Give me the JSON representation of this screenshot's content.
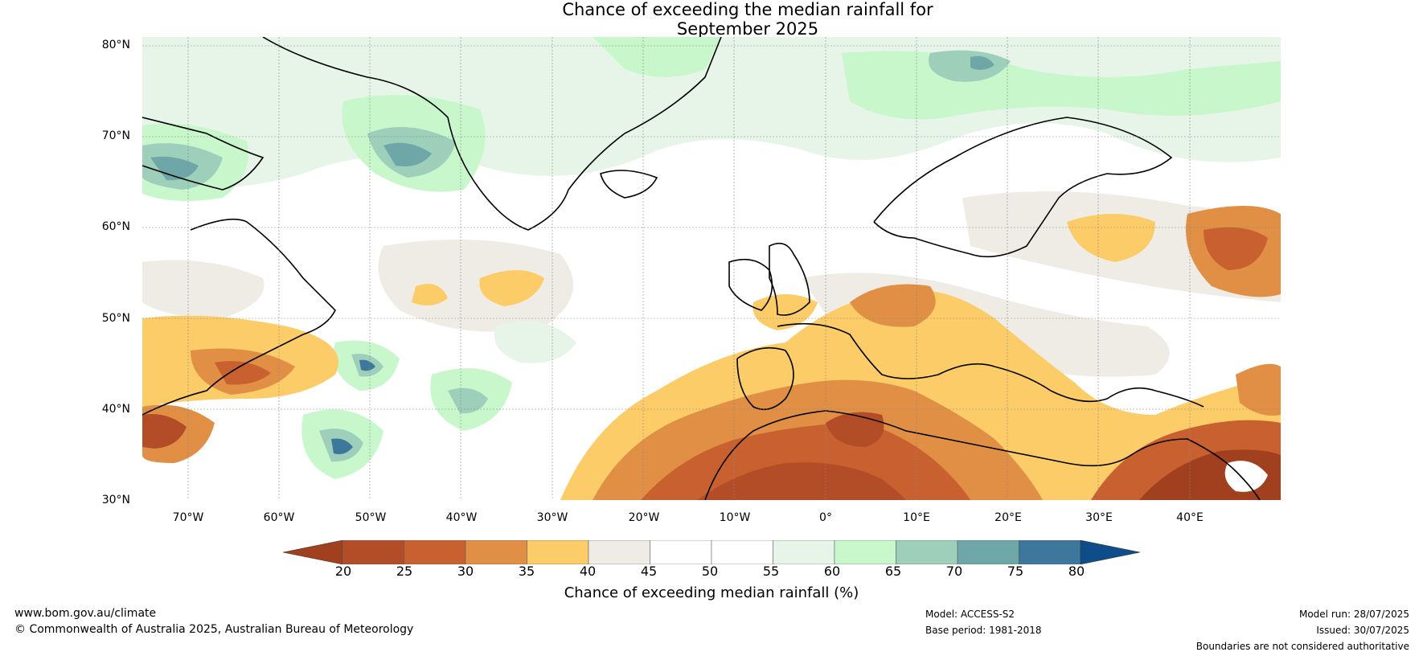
{
  "title": {
    "line1": "Chance of exceeding the median rainfall for",
    "line2": "September 2025"
  },
  "map": {
    "lat_labels": [
      "80°N",
      "70°N",
      "60°N",
      "50°N",
      "40°N",
      "30°N"
    ],
    "lon_labels": [
      "70°W",
      "60°W",
      "50°W",
      "40°W",
      "30°W",
      "20°W",
      "10°W",
      "0°",
      "10°E",
      "20°E",
      "30°E",
      "40°E"
    ],
    "extent": {
      "lon_min": -75,
      "lon_max": 50,
      "lat_min": 30,
      "lat_max": 81
    },
    "grid": true
  },
  "colorbar": {
    "label": "Chance of exceeding median rainfall (%)",
    "ticks": [
      "20",
      "25",
      "30",
      "35",
      "40",
      "45",
      "50",
      "55",
      "60",
      "65",
      "70",
      "75",
      "80"
    ],
    "colors": [
      "#a0401f",
      "#b34d28",
      "#c8612f",
      "#e08f45",
      "#fccc68",
      "#efece6",
      "#ffffff",
      "#ffffff",
      "#e6f5e8",
      "#c8f7cc",
      "#9dcfba",
      "#6fa7a9",
      "#3d779b",
      "#0e4d8a"
    ],
    "extend": "both"
  },
  "footer": {
    "website": "www.bom.gov.au/climate",
    "copyright": "© Commonwealth of Australia 2025, Australian Bureau of Meteorology",
    "model": "Model: ACCESS-S2",
    "base_period": "Base period: 1981-2018",
    "model_run": "Model run: 28/07/2025",
    "issued": "Issued: 30/07/2025",
    "disclaimer": "Boundaries are not considered authoritative"
  }
}
